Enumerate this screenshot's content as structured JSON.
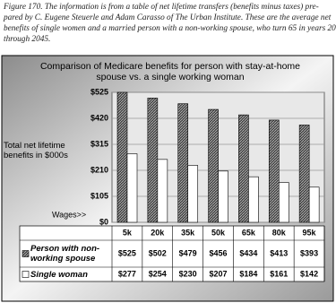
{
  "caption": [
    "Figure 170. The information is from a table of net lifetime transfers (benefits minus taxes) pre-",
    "pared by C. Eugene Steuerle and Adam Carasso of The Urban Institute. These are the average net",
    "benefits of single women and a married person with a non-working spouse, who turn 65 in years 2005",
    "through 2045."
  ],
  "chart_data": {
    "type": "bar",
    "title": "Comparison of Medicare benefits for person with stay-at-home spouse vs. a single working woman",
    "y_label": "Total net lifetime benefits in $000s",
    "x_label": "Wages>>",
    "categories": [
      "5k",
      "20k",
      "35k",
      "50k",
      "65k",
      "80k",
      "95k"
    ],
    "series": [
      {
        "name": "Person with non-working spouse",
        "color": "#3a3a3a",
        "values": [
          525,
          502,
          479,
          456,
          434,
          413,
          393
        ],
        "value_labels": [
          "$525",
          "$502",
          "$479",
          "$456",
          "$434",
          "$413",
          "$393"
        ]
      },
      {
        "name": "Single woman",
        "color": "#ffffff",
        "values": [
          277,
          254,
          230,
          207,
          184,
          161,
          142
        ],
        "value_labels": [
          "$277",
          "$254",
          "$230",
          "$207",
          "$184",
          "$161",
          "$142"
        ]
      }
    ],
    "ylim": [
      0,
      525
    ],
    "yticks": [
      {
        "value": 0,
        "label": "$0"
      },
      {
        "value": 105,
        "label": "$105"
      },
      {
        "value": 210,
        "label": "$210"
      },
      {
        "value": 315,
        "label": "$315"
      },
      {
        "value": 420,
        "label": "$420"
      },
      {
        "value": 525,
        "label": "$525"
      }
    ],
    "grid": true
  }
}
